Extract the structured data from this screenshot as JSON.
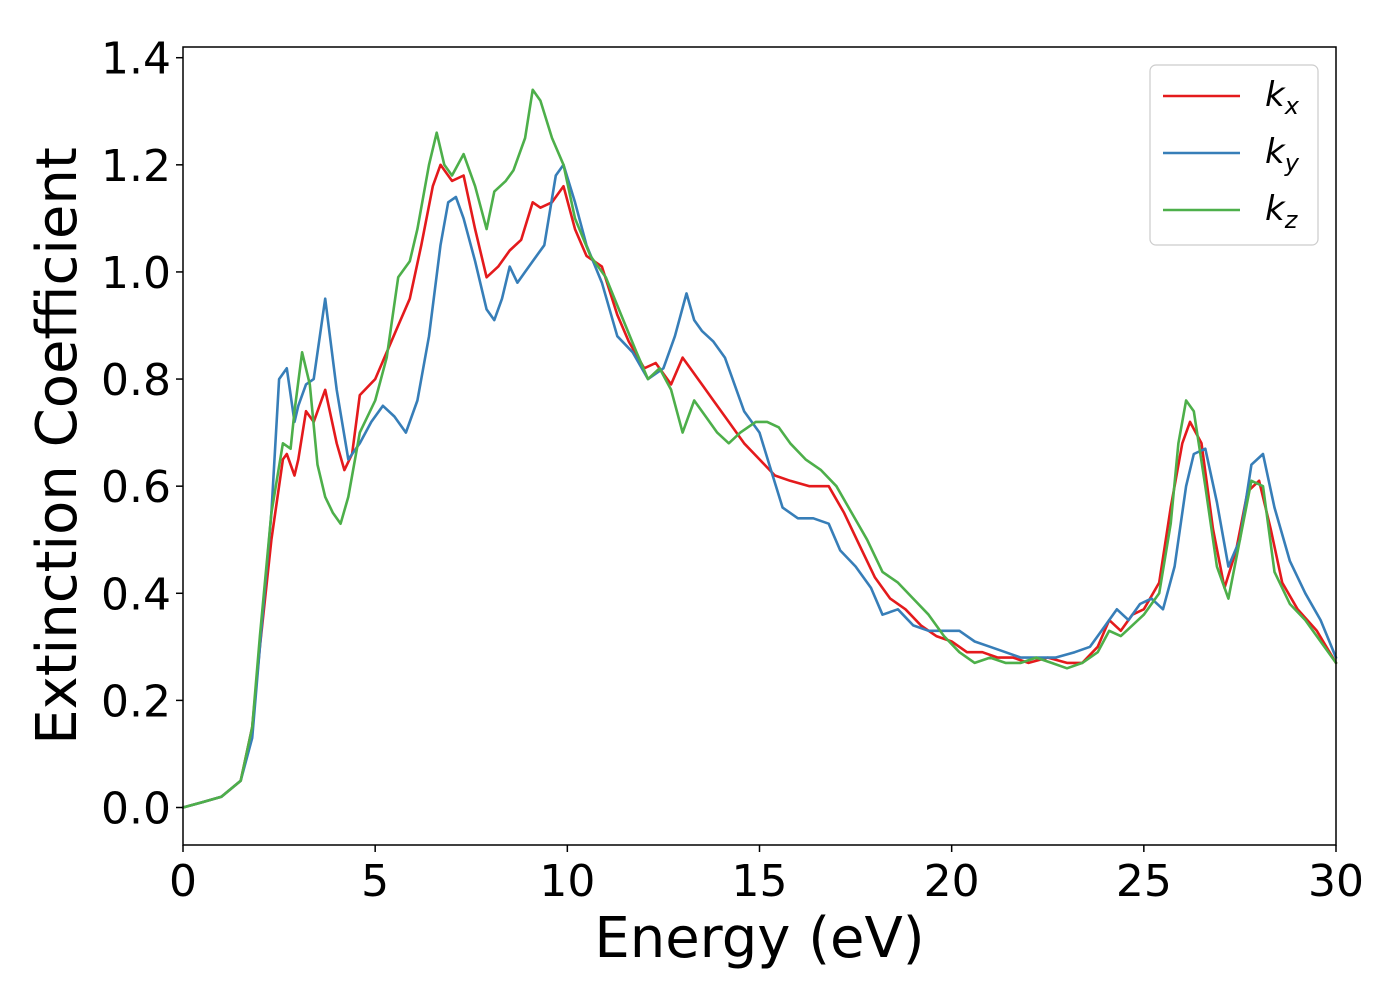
{
  "chart_data": {
    "type": "line",
    "xlabel": "Energy (eV)",
    "ylabel": "Extinction Coefficient",
    "xlim": [
      0,
      30
    ],
    "ylim": [
      -0.07,
      1.42
    ],
    "xticks": [
      0,
      5,
      10,
      15,
      20,
      25,
      30
    ],
    "xtick_labels": [
      "0",
      "5",
      "10",
      "15",
      "20",
      "25",
      "30"
    ],
    "yticks": [
      0.0,
      0.2,
      0.4,
      0.6,
      0.8,
      1.0,
      1.2,
      1.4
    ],
    "ytick_labels": [
      "0.0",
      "0.2",
      "0.4",
      "0.6",
      "0.8",
      "1.0",
      "1.2",
      "1.4"
    ],
    "grid": false,
    "legend_position": "top-right",
    "series": [
      {
        "name": "k_x",
        "label_main": "k",
        "label_sub": "x",
        "color": "#e41a1c",
        "x": [
          0,
          0.5,
          1.0,
          1.5,
          1.8,
          2.0,
          2.3,
          2.6,
          2.7,
          2.9,
          3.0,
          3.2,
          3.4,
          3.7,
          4.0,
          4.2,
          4.4,
          4.6,
          5.0,
          5.3,
          5.6,
          5.9,
          6.2,
          6.5,
          6.7,
          7.0,
          7.3,
          7.6,
          7.9,
          8.2,
          8.5,
          8.8,
          9.1,
          9.3,
          9.6,
          9.9,
          10.2,
          10.5,
          10.9,
          11.3,
          11.6,
          12.0,
          12.3,
          12.7,
          13.0,
          13.2,
          13.5,
          13.8,
          14.2,
          14.6,
          15.0,
          15.4,
          15.8,
          16.3,
          16.8,
          17.2,
          17.6,
          18.0,
          18.4,
          18.8,
          19.2,
          19.6,
          20.0,
          20.4,
          20.8,
          21.2,
          21.6,
          22.0,
          22.5,
          23.0,
          23.4,
          23.8,
          24.1,
          24.4,
          24.7,
          25.0,
          25.4,
          25.7,
          26.0,
          26.2,
          26.5,
          26.8,
          27.1,
          27.4,
          27.7,
          28.0,
          28.3,
          28.6,
          29.0,
          29.5,
          30.0
        ],
        "y": [
          0.0,
          0.01,
          0.02,
          0.05,
          0.15,
          0.3,
          0.5,
          0.65,
          0.66,
          0.62,
          0.65,
          0.74,
          0.72,
          0.78,
          0.68,
          0.63,
          0.66,
          0.77,
          0.8,
          0.85,
          0.9,
          0.95,
          1.05,
          1.16,
          1.2,
          1.17,
          1.18,
          1.08,
          0.99,
          1.01,
          1.04,
          1.06,
          1.13,
          1.12,
          1.13,
          1.16,
          1.08,
          1.03,
          1.01,
          0.92,
          0.87,
          0.82,
          0.83,
          0.79,
          0.84,
          0.82,
          0.79,
          0.76,
          0.72,
          0.68,
          0.65,
          0.62,
          0.61,
          0.6,
          0.6,
          0.55,
          0.49,
          0.43,
          0.39,
          0.37,
          0.34,
          0.32,
          0.31,
          0.29,
          0.29,
          0.28,
          0.28,
          0.27,
          0.28,
          0.27,
          0.27,
          0.3,
          0.35,
          0.33,
          0.36,
          0.37,
          0.42,
          0.56,
          0.68,
          0.72,
          0.68,
          0.52,
          0.41,
          0.48,
          0.59,
          0.61,
          0.52,
          0.42,
          0.37,
          0.33,
          0.27
        ]
      },
      {
        "name": "k_y",
        "label_main": "k",
        "label_sub": "y",
        "color": "#377eb8",
        "x": [
          0,
          0.5,
          1.0,
          1.5,
          1.8,
          2.0,
          2.3,
          2.5,
          2.7,
          2.9,
          3.0,
          3.2,
          3.4,
          3.7,
          4.0,
          4.3,
          4.6,
          4.9,
          5.2,
          5.5,
          5.8,
          6.1,
          6.4,
          6.7,
          6.9,
          7.1,
          7.3,
          7.6,
          7.9,
          8.1,
          8.3,
          8.5,
          8.7,
          8.9,
          9.1,
          9.4,
          9.7,
          9.9,
          10.2,
          10.5,
          10.9,
          11.3,
          11.7,
          12.1,
          12.5,
          12.8,
          13.1,
          13.3,
          13.5,
          13.8,
          14.1,
          14.3,
          14.6,
          15.0,
          15.3,
          15.6,
          16.0,
          16.4,
          16.8,
          17.1,
          17.5,
          17.9,
          18.2,
          18.6,
          19.0,
          19.4,
          19.8,
          20.2,
          20.6,
          21.0,
          21.4,
          21.8,
          22.2,
          22.7,
          23.2,
          23.6,
          24.0,
          24.3,
          24.6,
          24.9,
          25.2,
          25.5,
          25.8,
          26.1,
          26.3,
          26.6,
          26.9,
          27.2,
          27.5,
          27.8,
          28.1,
          28.4,
          28.8,
          29.2,
          29.6,
          30.0
        ],
        "y": [
          0.0,
          0.01,
          0.02,
          0.05,
          0.13,
          0.3,
          0.55,
          0.8,
          0.82,
          0.72,
          0.75,
          0.79,
          0.8,
          0.95,
          0.78,
          0.65,
          0.68,
          0.72,
          0.75,
          0.73,
          0.7,
          0.76,
          0.88,
          1.05,
          1.13,
          1.14,
          1.1,
          1.02,
          0.93,
          0.91,
          0.95,
          1.01,
          0.98,
          1.0,
          1.02,
          1.05,
          1.18,
          1.2,
          1.13,
          1.05,
          0.98,
          0.88,
          0.85,
          0.8,
          0.82,
          0.88,
          0.96,
          0.91,
          0.89,
          0.87,
          0.84,
          0.8,
          0.74,
          0.7,
          0.63,
          0.56,
          0.54,
          0.54,
          0.53,
          0.48,
          0.45,
          0.41,
          0.36,
          0.37,
          0.34,
          0.33,
          0.33,
          0.33,
          0.31,
          0.3,
          0.29,
          0.28,
          0.28,
          0.28,
          0.29,
          0.3,
          0.34,
          0.37,
          0.35,
          0.38,
          0.39,
          0.37,
          0.45,
          0.6,
          0.66,
          0.67,
          0.57,
          0.45,
          0.5,
          0.64,
          0.66,
          0.56,
          0.46,
          0.4,
          0.35,
          0.28
        ]
      },
      {
        "name": "k_z",
        "label_main": "k",
        "label_sub": "z",
        "color": "#4daf4a",
        "x": [
          0,
          0.5,
          1.0,
          1.5,
          1.8,
          2.0,
          2.3,
          2.6,
          2.8,
          2.9,
          3.1,
          3.3,
          3.5,
          3.7,
          3.9,
          4.1,
          4.3,
          4.6,
          5.0,
          5.3,
          5.6,
          5.9,
          6.1,
          6.4,
          6.6,
          6.8,
          7.0,
          7.3,
          7.6,
          7.9,
          8.1,
          8.4,
          8.6,
          8.9,
          9.1,
          9.3,
          9.6,
          9.9,
          10.2,
          10.6,
          11.0,
          11.4,
          11.8,
          12.1,
          12.4,
          12.7,
          13.0,
          13.3,
          13.6,
          13.9,
          14.2,
          14.5,
          14.9,
          15.2,
          15.5,
          15.8,
          16.2,
          16.6,
          17.0,
          17.4,
          17.8,
          18.2,
          18.6,
          19.0,
          19.4,
          19.8,
          20.2,
          20.6,
          21.0,
          21.4,
          21.8,
          22.2,
          22.6,
          23.0,
          23.4,
          23.8,
          24.1,
          24.4,
          24.7,
          25.0,
          25.4,
          25.7,
          25.9,
          26.1,
          26.3,
          26.6,
          26.9,
          27.2,
          27.5,
          27.8,
          28.1,
          28.4,
          28.8,
          29.2,
          29.6,
          30.0
        ],
        "y": [
          0.0,
          0.01,
          0.02,
          0.05,
          0.15,
          0.32,
          0.55,
          0.68,
          0.67,
          0.74,
          0.85,
          0.79,
          0.64,
          0.58,
          0.55,
          0.53,
          0.58,
          0.7,
          0.76,
          0.84,
          0.99,
          1.02,
          1.08,
          1.2,
          1.26,
          1.2,
          1.18,
          1.22,
          1.16,
          1.08,
          1.15,
          1.17,
          1.19,
          1.25,
          1.34,
          1.32,
          1.25,
          1.2,
          1.1,
          1.03,
          0.99,
          0.92,
          0.85,
          0.8,
          0.82,
          0.78,
          0.7,
          0.76,
          0.73,
          0.7,
          0.68,
          0.7,
          0.72,
          0.72,
          0.71,
          0.68,
          0.65,
          0.63,
          0.6,
          0.55,
          0.5,
          0.44,
          0.42,
          0.39,
          0.36,
          0.32,
          0.29,
          0.27,
          0.28,
          0.27,
          0.27,
          0.28,
          0.27,
          0.26,
          0.27,
          0.29,
          0.33,
          0.32,
          0.34,
          0.36,
          0.4,
          0.53,
          0.68,
          0.76,
          0.74,
          0.6,
          0.45,
          0.39,
          0.5,
          0.61,
          0.6,
          0.44,
          0.38,
          0.35,
          0.31,
          0.27
        ]
      }
    ]
  }
}
